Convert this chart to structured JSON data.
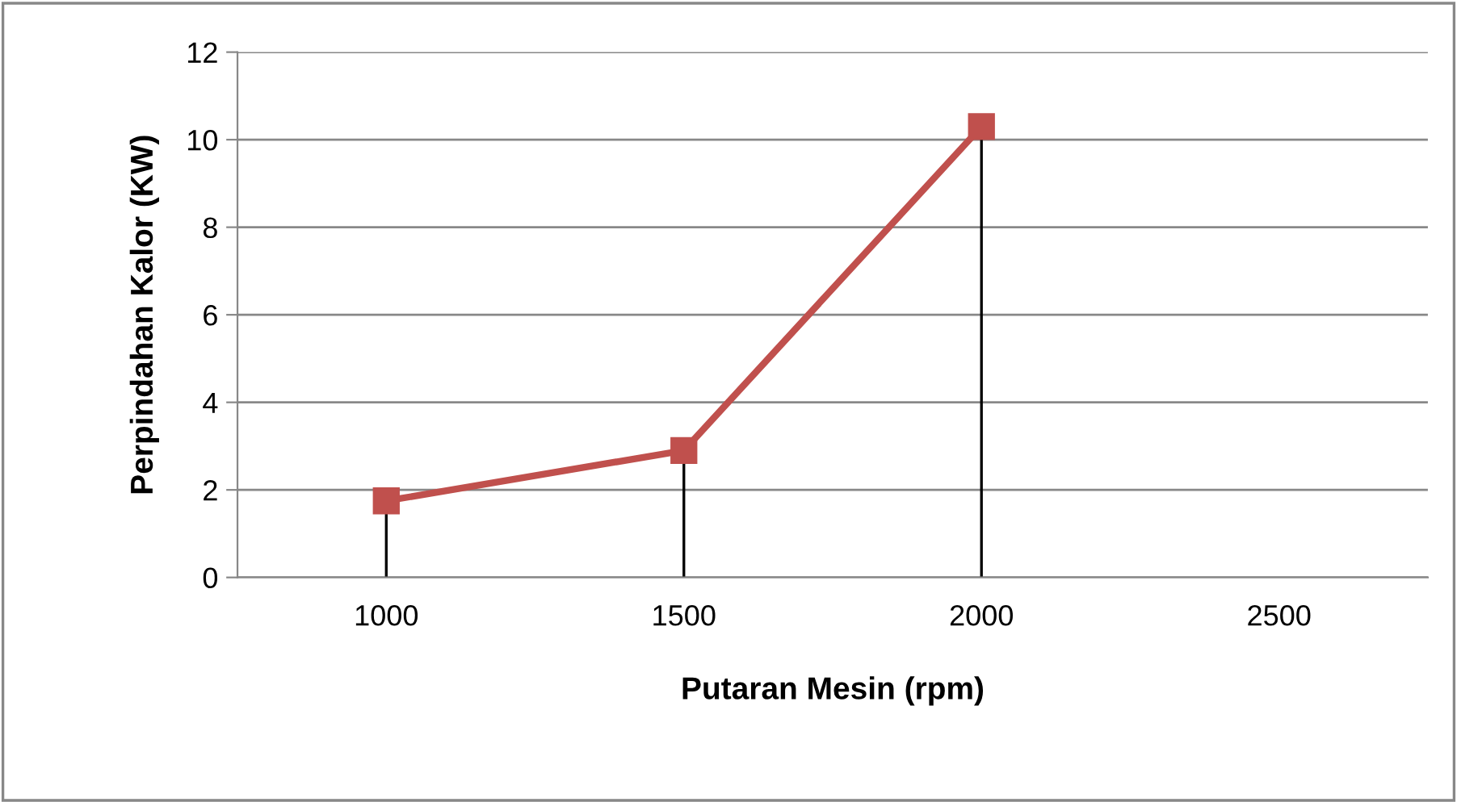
{
  "chart_data": {
    "type": "line",
    "xlabel": "Putaran Mesin (rpm)",
    "ylabel": "Perpindahan Kalor (KW)",
    "categories": [
      "1000",
      "1500",
      "2000",
      "2500"
    ],
    "series": [
      {
        "color": "#c0504d",
        "values": [
          1.75,
          2.9,
          10.3,
          null
        ],
        "errors": [
          [
            0,
            1.75
          ],
          [
            0,
            2.9
          ],
          [
            0,
            10.3
          ],
          null
        ]
      }
    ],
    "ylim": [
      0,
      12
    ],
    "yticks": [
      0,
      2,
      4,
      6,
      8,
      10,
      12
    ],
    "grid": "y",
    "marker": "square",
    "line_style": "solid",
    "legend": false
  }
}
